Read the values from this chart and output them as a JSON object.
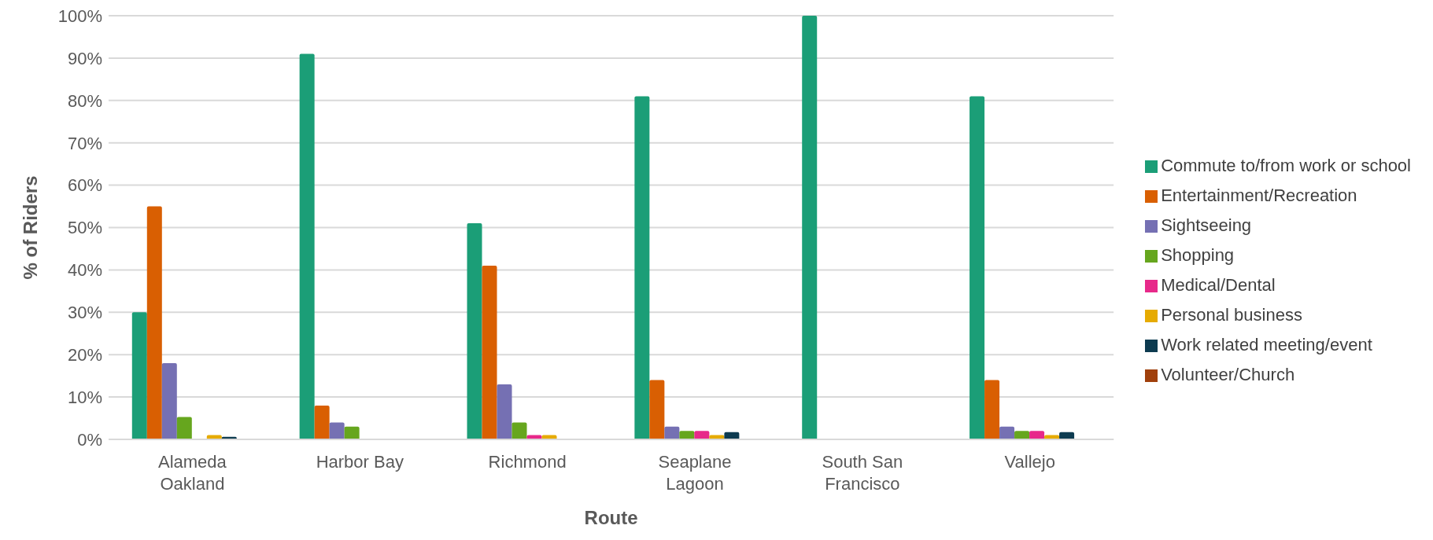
{
  "chart_data": {
    "type": "bar",
    "xlabel": "Route",
    "ylabel": "% of Riders",
    "categories": [
      "Alameda Oakland",
      "Harbor Bay",
      "Richmond",
      "Seaplane Lagoon",
      "South San Francisco",
      "Vallejo"
    ],
    "series": [
      {
        "name": "Commute to/from work or school",
        "color": "#1b9e77",
        "values": [
          30,
          91,
          51,
          81,
          100,
          81
        ]
      },
      {
        "name": "Entertainment/Recreation",
        "color": "#d95f02",
        "values": [
          55,
          8,
          41,
          14,
          0,
          14
        ]
      },
      {
        "name": "Sightseeing",
        "color": "#7570b3",
        "values": [
          18,
          4,
          13,
          3,
          0,
          3
        ]
      },
      {
        "name": "Shopping",
        "color": "#66a61e",
        "values": [
          5.3,
          3,
          4,
          2,
          0,
          2
        ]
      },
      {
        "name": "Medical/Dental",
        "color": "#e7298a",
        "values": [
          0,
          0,
          1,
          2,
          0,
          2
        ]
      },
      {
        "name": "Personal business",
        "color": "#e6ab02",
        "values": [
          1,
          0,
          1,
          1,
          0,
          1
        ]
      },
      {
        "name": "Work related meeting/event",
        "color": "#0d3b50",
        "values": [
          0.6,
          0,
          0,
          1.7,
          0,
          1.7
        ]
      },
      {
        "name": "Volunteer/Church",
        "color": "#a0400c",
        "values": [
          0,
          0,
          0,
          0,
          0,
          0
        ]
      }
    ],
    "ylim": [
      0,
      100
    ],
    "yticks": [
      {
        "value": 0,
        "label": "0%"
      },
      {
        "value": 10,
        "label": "10%"
      },
      {
        "value": 20,
        "label": "20%"
      },
      {
        "value": 30,
        "label": "30%"
      },
      {
        "value": 40,
        "label": "40%"
      },
      {
        "value": 50,
        "label": "50%"
      },
      {
        "value": 60,
        "label": "60%"
      },
      {
        "value": 70,
        "label": "70%"
      },
      {
        "value": 80,
        "label": "80%"
      },
      {
        "value": 90,
        "label": "90%"
      },
      {
        "value": 100,
        "label": "100%"
      }
    ],
    "grid": "y",
    "legend": "right"
  }
}
